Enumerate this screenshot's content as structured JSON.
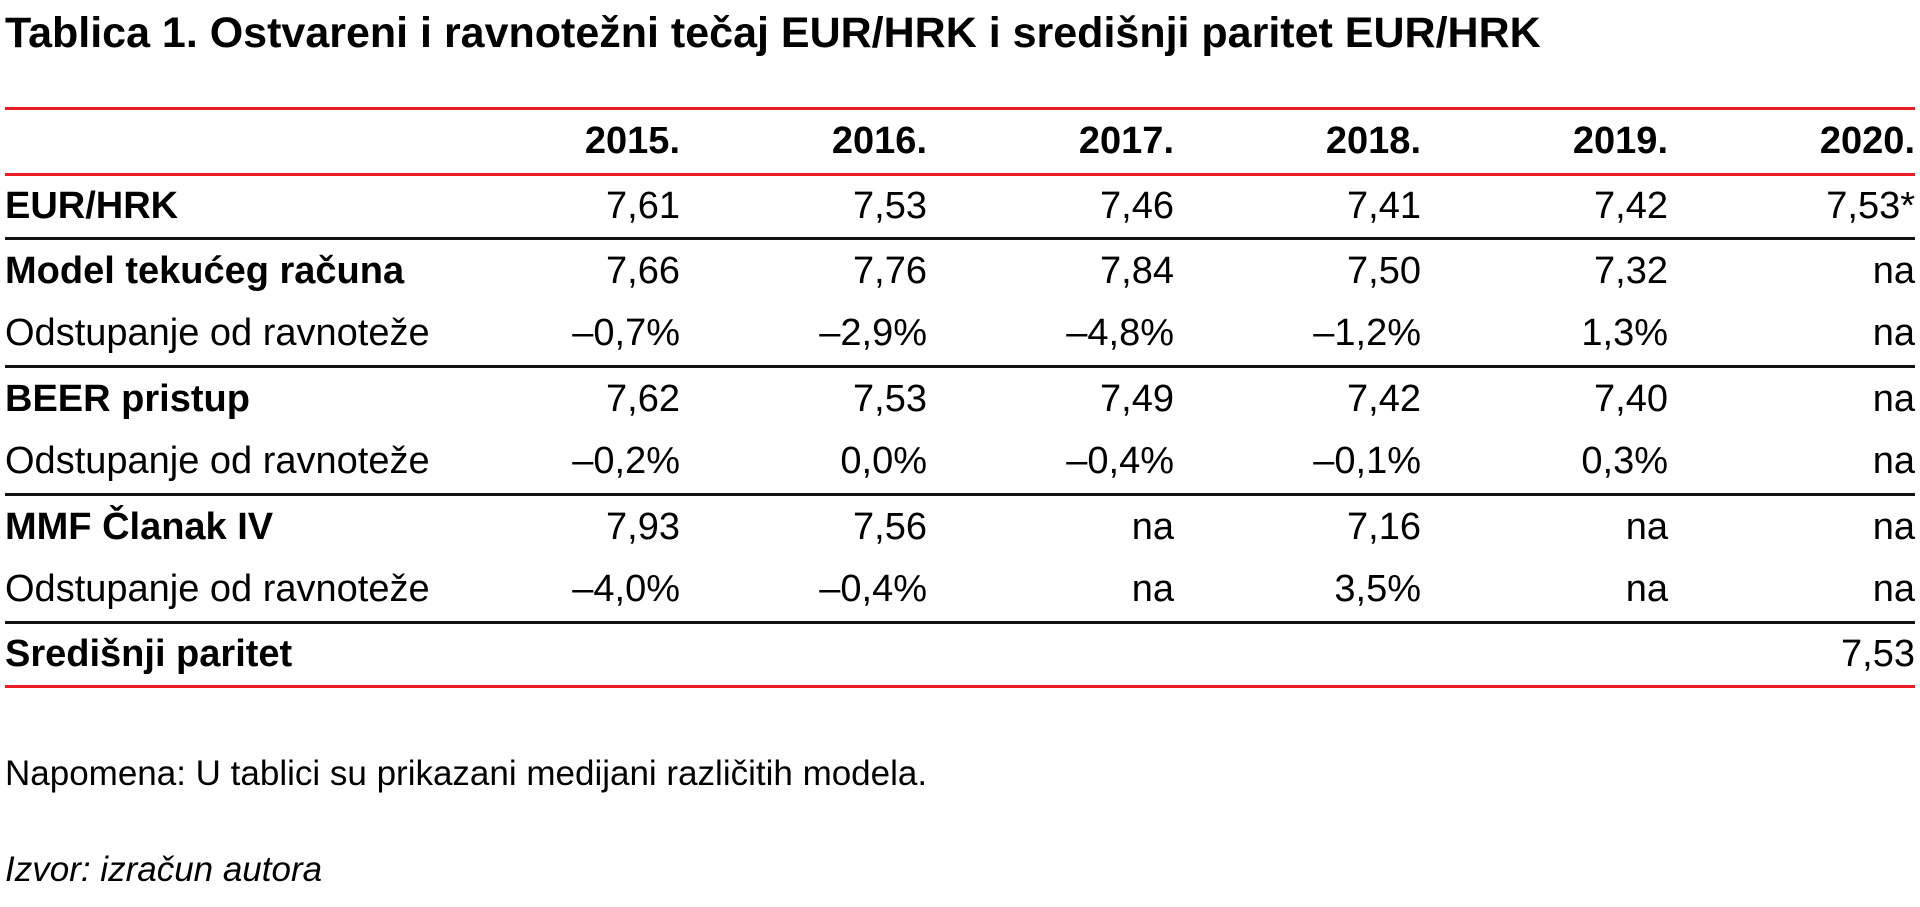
{
  "title": "Tablica 1. Ostvareni i ravnotežni tečaj EUR/HRK i središnji paritet EUR/HRK",
  "note": "Napomena: U tablici su prikazani medijani različitih modela.",
  "source": "Izvor: izračun autora",
  "colors": {
    "rule_red": "#ed1c24",
    "rule_black": "#111111",
    "text": "#000000",
    "background": "#ffffff"
  },
  "chart_data": {
    "type": "table",
    "title": "Tablica 1. Ostvareni i ravnotežni tečaj EUR/HRK i središnji paritet EUR/HRK",
    "columns": [
      "",
      "2015.",
      "2016.",
      "2017.",
      "2018.",
      "2019.",
      "2020."
    ],
    "rows": [
      {
        "label": "EUR/HRK",
        "values": [
          "7,61",
          "7,53",
          "7,46",
          "7,41",
          "7,42",
          "7,53*"
        ]
      },
      {
        "label": "Model tekućeg računa",
        "values": [
          "7,66",
          "7,76",
          "7,84",
          "7,50",
          "7,32",
          "na"
        ]
      },
      {
        "label": "Odstupanje od ravnoteže",
        "values": [
          "–0,7%",
          "–2,9%",
          "–4,8%",
          "–1,2%",
          "1,3%",
          "na"
        ]
      },
      {
        "label": "BEER pristup",
        "values": [
          "7,62",
          "7,53",
          "7,49",
          "7,42",
          "7,40",
          "na"
        ]
      },
      {
        "label": "Odstupanje od ravnoteže",
        "values": [
          "–0,2%",
          "0,0%",
          "–0,4%",
          "–0,1%",
          "0,3%",
          "na"
        ]
      },
      {
        "label": "MMF Članak IV",
        "values": [
          "7,93",
          "7,56",
          "na",
          "7,16",
          "na",
          "na"
        ]
      },
      {
        "label": "Odstupanje od ravnoteže",
        "values": [
          "–4,0%",
          "–0,4%",
          "na",
          "3,5%",
          "na",
          "na"
        ]
      },
      {
        "label": "Središnji paritet",
        "values": [
          "",
          "",
          "",
          "",
          "",
          "7,53"
        ]
      }
    ]
  }
}
